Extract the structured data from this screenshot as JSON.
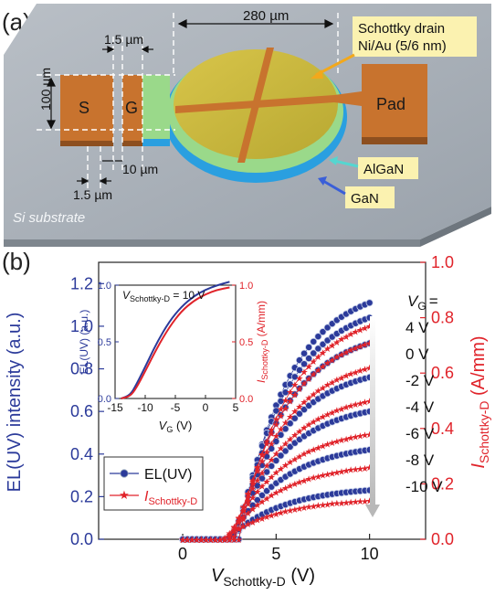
{
  "panel_a": {
    "label": "(a)",
    "dim_280": "280 µm",
    "dim_15_top": "1.5 µm",
    "dim_100": "100 µm",
    "dim_10": "10 µm",
    "dim_15_bottom": "1.5 µm",
    "source_label": "S",
    "gate_label": "G",
    "pad_label": "Pad",
    "callout_drain_line1": "Schottky drain",
    "callout_drain_line2": "Ni/Au (5/6 nm)",
    "callout_algan": "AlGaN",
    "callout_gan": "GaN",
    "substrate_label": "Si substrate",
    "colors": {
      "substrate": "#a9b0b8",
      "electrode": "#c8732e",
      "drain_disk": "#c9b93a",
      "algan": "#9ad98a",
      "gan": "#2aa0e0",
      "callout_bg": "#fbf2b0"
    }
  },
  "panel_b": {
    "label": "(b)",
    "vg_header_sym": "V",
    "vg_header_sub": "G",
    "vg_header_eq": "=",
    "vg_labels": [
      "4 V",
      "0 V",
      "-2 V",
      "-4 V",
      "-6 V",
      "-8 V",
      "-10 V"
    ],
    "legend": {
      "el_label": "EL(UV)",
      "i_sym": "I",
      "i_sub": "Schottky-D"
    },
    "inset_title_sym": "V",
    "inset_title_sub": "Schottky-D",
    "inset_title_val": " = 10 V"
  },
  "chart_data": [
    {
      "type": "line",
      "title": "",
      "xlabel_sym": "V",
      "xlabel_sub": "Schottky-D",
      "xlabel_unit": " (V)",
      "ylabel_left": "EL(UV) intensity (a.u.)",
      "ylabel_right_sym": "I",
      "ylabel_right_sub": "Schottky-D",
      "ylabel_right_unit": " (A/mm)",
      "xlim": [
        -4.5,
        13
      ],
      "ylim_left": [
        0,
        1.3
      ],
      "ylim_right": [
        0,
        1.0
      ],
      "x_ticks": [
        0,
        5,
        10
      ],
      "y_left_ticks": [
        "0.0",
        "0.2",
        "0.4",
        "0.6",
        "0.8",
        "1.0",
        "1.2"
      ],
      "y_right_ticks": [
        "0.0",
        "0.2",
        "0.4",
        "0.6",
        "0.8",
        "1.0"
      ],
      "legend_position": "bottom-left",
      "x_start": 3.0,
      "x_end": 10,
      "el_end_values": [
        1.11,
        1.04,
        0.92,
        0.76,
        0.6,
        0.42,
        0.23
      ],
      "i_end_values": [
        0.77,
        0.71,
        0.62,
        0.5,
        0.38,
        0.26,
        0.14
      ],
      "series_colors": {
        "el": "#2b3a9a",
        "i": "#e0232a"
      }
    },
    {
      "type": "line",
      "title": "",
      "xlabel_sym": "V",
      "xlabel_sub": "G",
      "xlabel_unit": " (V)",
      "ylabel_left": "EL(UV) (a.u.)",
      "ylabel_right_sym": "I",
      "ylabel_right_sub": "Schottky-D",
      "ylabel_right_unit": " (A/mm)",
      "xlim": [
        -15,
        5
      ],
      "ylim": [
        0,
        1.0
      ],
      "x_ticks": [
        "-15",
        "-10",
        "-5",
        "0",
        "5"
      ],
      "y_left_ticks": [
        "0.0",
        "0.5",
        "1.0"
      ],
      "y_right_ticks": [
        "0.0",
        "0.5",
        "1.0"
      ],
      "el_curve": {
        "x": [
          -14,
          -12.5,
          -11.5,
          -10,
          -8,
          -6,
          -4,
          -2,
          0,
          2,
          4
        ],
        "y": [
          0,
          0.03,
          0.12,
          0.28,
          0.5,
          0.68,
          0.81,
          0.9,
          0.96,
          1.0,
          1.03
        ]
      },
      "i_curve": {
        "x": [
          -14,
          -12.5,
          -11.5,
          -10,
          -8,
          -6,
          -4,
          -2,
          0,
          2,
          4
        ],
        "y": [
          0,
          0.02,
          0.09,
          0.24,
          0.45,
          0.63,
          0.77,
          0.86,
          0.92,
          0.96,
          0.98
        ]
      }
    }
  ]
}
